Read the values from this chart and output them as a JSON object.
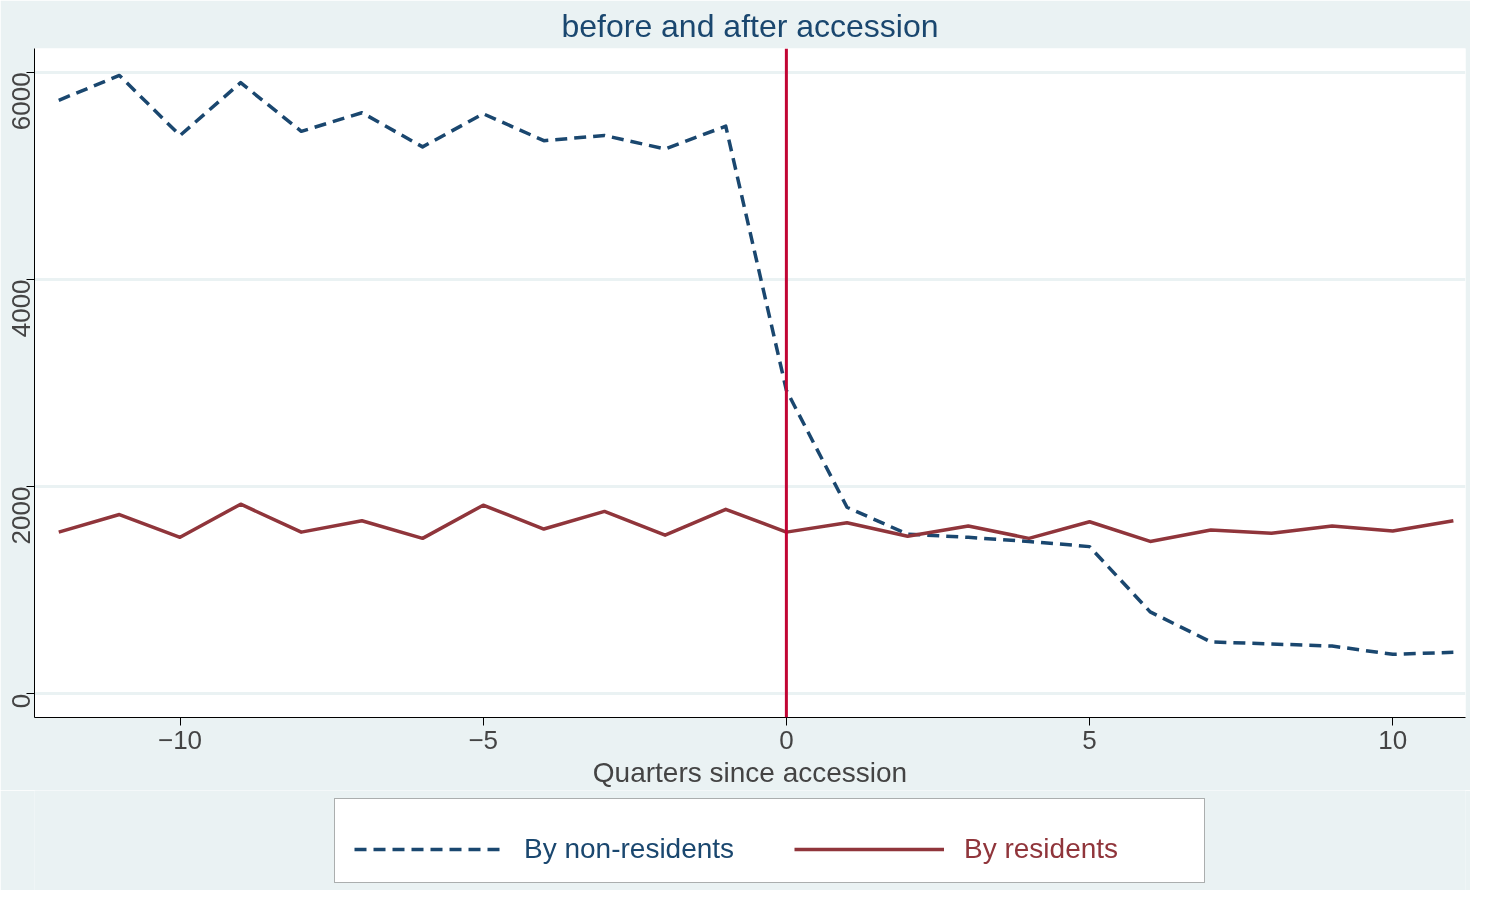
{
  "chart_data": {
    "type": "line",
    "title": "before and after accession",
    "xlabel": "Quarters since accession",
    "x": [
      -12,
      -11,
      -10,
      -9,
      -8,
      -7,
      -6,
      -5,
      -4,
      -3,
      -2,
      -1,
      0,
      1,
      2,
      3,
      4,
      5,
      6,
      7,
      8,
      9,
      10,
      11
    ],
    "series": [
      {
        "name": "By non-residents",
        "color": "#1a476f",
        "line_style": "dashed",
        "values": [
          5730,
          5970,
          5390,
          5900,
          5430,
          5610,
          5280,
          5600,
          5340,
          5390,
          5260,
          5480,
          2930,
          1800,
          1540,
          1510,
          1470,
          1420,
          790,
          500,
          480,
          460,
          380,
          400
        ]
      },
      {
        "name": "By residents",
        "color": "#90353b",
        "line_style": "solid",
        "values": [
          1560,
          1730,
          1510,
          1830,
          1560,
          1670,
          1500,
          1820,
          1590,
          1760,
          1530,
          1780,
          1560,
          1650,
          1520,
          1620,
          1500,
          1660,
          1470,
          1580,
          1550,
          1620,
          1570,
          1670
        ]
      }
    ],
    "xlim": [
      -12.4,
      11.2
    ],
    "ylim": [
      -230,
      6230
    ],
    "xticks": [
      -10,
      -5,
      0,
      5,
      10
    ],
    "yticks": [
      0,
      2000,
      4000,
      6000
    ],
    "ref_lines": [
      {
        "axis": "x",
        "value": 0,
        "color": "#c10534"
      }
    ],
    "grid": "y",
    "legend": "bottom"
  }
}
